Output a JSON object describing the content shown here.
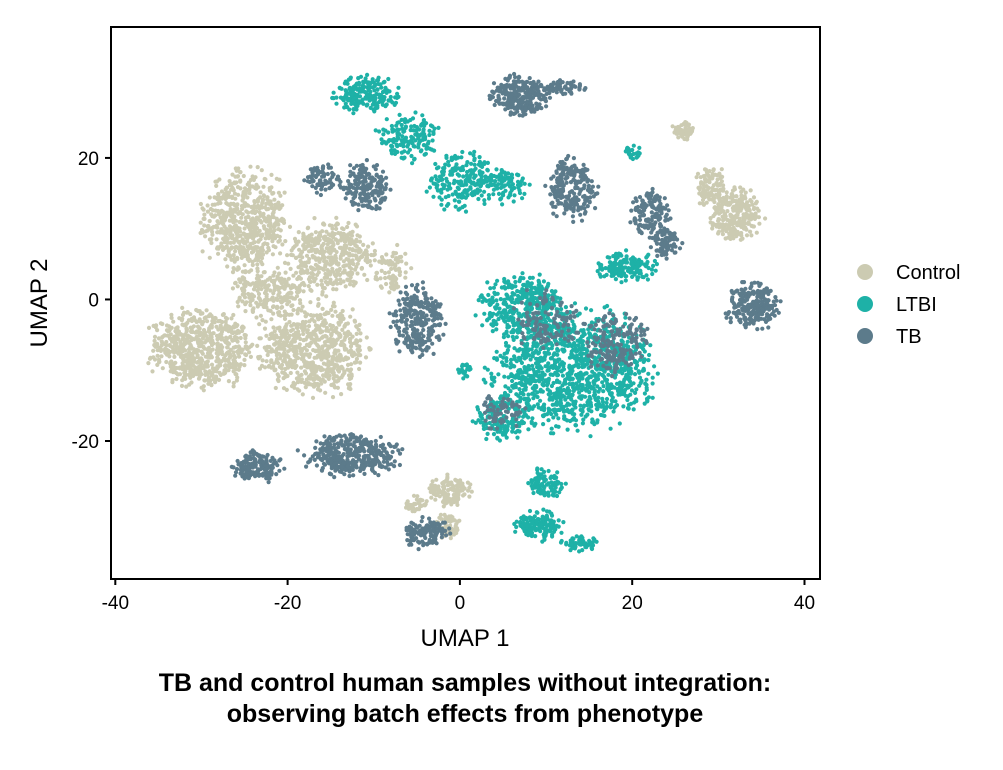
{
  "caption": {
    "line1": "TB and control human samples without integration:",
    "line2": "observing batch effects from phenotype"
  },
  "chart_data": {
    "type": "scatter",
    "xlabel": "UMAP 1",
    "ylabel": "UMAP 2",
    "xlim": [
      -40.5,
      41.8
    ],
    "ylim": [
      -39.5,
      38.5
    ],
    "x_ticks": [
      -40,
      -20,
      0,
      20,
      40
    ],
    "x_tick_labels": [
      "-40",
      "-20",
      "0",
      "20",
      "40"
    ],
    "y_ticks": [
      -20,
      0,
      20
    ],
    "y_tick_labels": [
      "-20",
      "0",
      "20"
    ],
    "grid": false,
    "legend_position": "right",
    "series": [
      {
        "name": "Control",
        "color": "#cccbb2",
        "clusters": [
          {
            "cx": -30,
            "cy": -7,
            "rx": 7,
            "ry": 6.5,
            "n": 650
          },
          {
            "cx": -25,
            "cy": 11,
            "rx": 6,
            "ry": 8.5,
            "n": 600
          },
          {
            "cx": -17,
            "cy": -7,
            "rx": 7.5,
            "ry": 7.5,
            "n": 650
          },
          {
            "cx": -15,
            "cy": 6,
            "rx": 6,
            "ry": 6,
            "n": 420
          },
          {
            "cx": -22,
            "cy": 1,
            "rx": 5,
            "ry": 4,
            "n": 200
          },
          {
            "cx": -8,
            "cy": 4,
            "rx": 2.5,
            "ry": 4,
            "n": 80
          },
          {
            "cx": 26,
            "cy": 24,
            "rx": 1.5,
            "ry": 1.5,
            "n": 60
          },
          {
            "cx": 29,
            "cy": 16,
            "rx": 2,
            "ry": 3.5,
            "n": 90
          },
          {
            "cx": 32,
            "cy": 12,
            "rx": 3.5,
            "ry": 4.5,
            "n": 260
          },
          {
            "cx": -1,
            "cy": -27,
            "rx": 3,
            "ry": 2.5,
            "n": 120
          },
          {
            "cx": -1.5,
            "cy": -32,
            "rx": 1.8,
            "ry": 2,
            "n": 70
          },
          {
            "cx": -5,
            "cy": -29,
            "rx": 2,
            "ry": 1.5,
            "n": 40
          }
        ]
      },
      {
        "name": "LTBI",
        "color": "#1eb1a7",
        "clusters": [
          {
            "cx": -11,
            "cy": 29,
            "rx": 4.5,
            "ry": 3,
            "n": 200
          },
          {
            "cx": -6,
            "cy": 23,
            "rx": 4,
            "ry": 4,
            "n": 150
          },
          {
            "cx": 0,
            "cy": 17,
            "rx": 4.5,
            "ry": 5,
            "n": 200
          },
          {
            "cx": 5,
            "cy": 16,
            "rx": 3.5,
            "ry": 3,
            "n": 100
          },
          {
            "cx": 7,
            "cy": -1,
            "rx": 6,
            "ry": 5,
            "n": 350
          },
          {
            "cx": 13,
            "cy": -10,
            "rx": 11,
            "ry": 10,
            "n": 1200
          },
          {
            "cx": 5,
            "cy": -17,
            "rx": 4,
            "ry": 3.5,
            "n": 150
          },
          {
            "cx": 19.5,
            "cy": 4.5,
            "rx": 4,
            "ry": 2.5,
            "n": 150
          },
          {
            "cx": 20,
            "cy": 21,
            "rx": 1.2,
            "ry": 1.5,
            "n": 25
          },
          {
            "cx": 10,
            "cy": -26,
            "rx": 2.5,
            "ry": 2.5,
            "n": 90
          },
          {
            "cx": 9,
            "cy": -32,
            "rx": 3.5,
            "ry": 2.5,
            "n": 140
          },
          {
            "cx": 14,
            "cy": -34.5,
            "rx": 2.5,
            "ry": 1.2,
            "n": 60
          },
          {
            "cx": 0.5,
            "cy": -10,
            "rx": 1,
            "ry": 1.5,
            "n": 20
          }
        ]
      },
      {
        "name": "TB",
        "color": "#5c7b8b",
        "clusters": [
          {
            "cx": 7,
            "cy": 29,
            "rx": 4,
            "ry": 3.5,
            "n": 260
          },
          {
            "cx": 12,
            "cy": 30,
            "rx": 3,
            "ry": 1.2,
            "n": 60
          },
          {
            "cx": 13,
            "cy": 15.5,
            "rx": 3.5,
            "ry": 5,
            "n": 230
          },
          {
            "cx": 22,
            "cy": 12,
            "rx": 2.5,
            "ry": 4,
            "n": 140
          },
          {
            "cx": 24,
            "cy": 8,
            "rx": 2,
            "ry": 2.5,
            "n": 80
          },
          {
            "cx": 34,
            "cy": -1,
            "rx": 3.5,
            "ry": 4,
            "n": 230
          },
          {
            "cx": -11,
            "cy": 16,
            "rx": 3.5,
            "ry": 4,
            "n": 180
          },
          {
            "cx": -16,
            "cy": 17,
            "rx": 2.5,
            "ry": 2.5,
            "n": 70
          },
          {
            "cx": -5,
            "cy": -3,
            "rx": 3.5,
            "ry": 6,
            "n": 260
          },
          {
            "cx": -12.5,
            "cy": -22,
            "rx": 6.5,
            "ry": 3.5,
            "n": 360
          },
          {
            "cx": -23.5,
            "cy": -23.5,
            "rx": 3.5,
            "ry": 2.5,
            "n": 160
          },
          {
            "cx": -4,
            "cy": -33,
            "rx": 3,
            "ry": 2.5,
            "n": 120
          },
          {
            "cx": 18,
            "cy": -6,
            "rx": 4.5,
            "ry": 5,
            "n": 180
          },
          {
            "cx": 10,
            "cy": -3,
            "rx": 5,
            "ry": 5,
            "n": 120
          },
          {
            "cx": 5,
            "cy": -16,
            "rx": 3,
            "ry": 3,
            "n": 60
          }
        ]
      }
    ]
  }
}
